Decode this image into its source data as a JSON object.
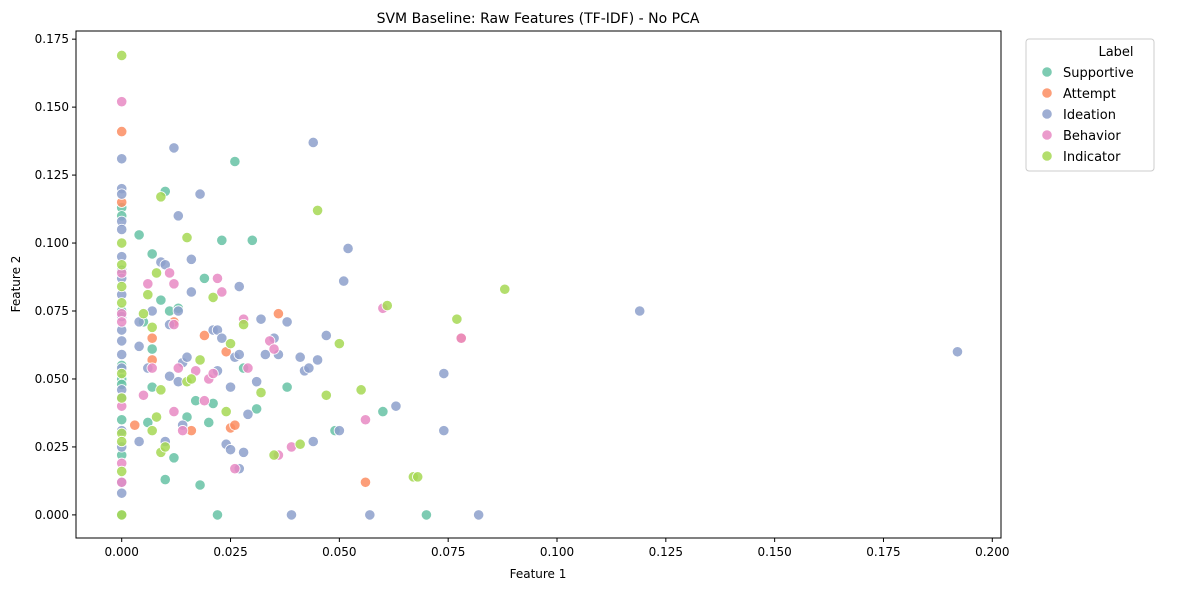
{
  "chart_data": {
    "type": "scatter",
    "title": "SVM Baseline: Raw Features (TF-IDF) - No PCA",
    "xlabel": "Feature 1",
    "ylabel": "Feature 2",
    "xlim": [
      -0.0105,
      0.202
    ],
    "ylim": [
      -0.0085,
      0.178
    ],
    "xticks": [
      0.0,
      0.025,
      0.05,
      0.075,
      0.1,
      0.125,
      0.15,
      0.175,
      0.2
    ],
    "xtick_labels": [
      "0.000",
      "0.025",
      "0.050",
      "0.075",
      "0.100",
      "0.125",
      "0.150",
      "0.175",
      "0.200"
    ],
    "yticks": [
      0.0,
      0.025,
      0.05,
      0.075,
      0.1,
      0.125,
      0.15,
      0.175
    ],
    "ytick_labels": [
      "0.000",
      "0.025",
      "0.050",
      "0.075",
      "0.100",
      "0.125",
      "0.150",
      "0.175"
    ],
    "grid": false,
    "legend": {
      "title": "Label",
      "placement": "outside-top-right"
    },
    "series": [
      {
        "name": "Supportive",
        "color": "#66c2a5",
        "points": [
          [
            0.0,
            0.113
          ],
          [
            0.0,
            0.11
          ],
          [
            0.0,
            0.09
          ],
          [
            0.0,
            0.075
          ],
          [
            0.0,
            0.055
          ],
          [
            0.0,
            0.05
          ],
          [
            0.0,
            0.048
          ],
          [
            0.0,
            0.035
          ],
          [
            0.0,
            0.022
          ],
          [
            0.0,
            0.0
          ],
          [
            0.004,
            0.103
          ],
          [
            0.005,
            0.071
          ],
          [
            0.006,
            0.034
          ],
          [
            0.007,
            0.096
          ],
          [
            0.007,
            0.061
          ],
          [
            0.007,
            0.047
          ],
          [
            0.009,
            0.079
          ],
          [
            0.01,
            0.119
          ],
          [
            0.01,
            0.013
          ],
          [
            0.011,
            0.075
          ],
          [
            0.012,
            0.021
          ],
          [
            0.013,
            0.076
          ],
          [
            0.015,
            0.036
          ],
          [
            0.017,
            0.042
          ],
          [
            0.018,
            0.011
          ],
          [
            0.019,
            0.087
          ],
          [
            0.02,
            0.034
          ],
          [
            0.021,
            0.041
          ],
          [
            0.022,
            0.0
          ],
          [
            0.023,
            0.101
          ],
          [
            0.026,
            0.13
          ],
          [
            0.028,
            0.054
          ],
          [
            0.03,
            0.101
          ],
          [
            0.031,
            0.039
          ],
          [
            0.038,
            0.047
          ],
          [
            0.049,
            0.031
          ],
          [
            0.06,
            0.038
          ],
          [
            0.07,
            0.0
          ]
        ]
      },
      {
        "name": "Attempt",
        "color": "#fc8d62",
        "points": [
          [
            0.0,
            0.141
          ],
          [
            0.0,
            0.115
          ],
          [
            0.003,
            0.033
          ],
          [
            0.007,
            0.065
          ],
          [
            0.007,
            0.057
          ],
          [
            0.012,
            0.071
          ],
          [
            0.016,
            0.031
          ],
          [
            0.019,
            0.066
          ],
          [
            0.024,
            0.06
          ],
          [
            0.025,
            0.032
          ],
          [
            0.026,
            0.033
          ],
          [
            0.036,
            0.074
          ],
          [
            0.056,
            0.012
          ],
          [
            0.078,
            0.065
          ]
        ]
      },
      {
        "name": "Ideation",
        "color": "#8da0cb",
        "points": [
          [
            0.0,
            0.131
          ],
          [
            0.0,
            0.12
          ],
          [
            0.0,
            0.118
          ],
          [
            0.0,
            0.108
          ],
          [
            0.0,
            0.105
          ],
          [
            0.0,
            0.095
          ],
          [
            0.0,
            0.087
          ],
          [
            0.0,
            0.081
          ],
          [
            0.0,
            0.073
          ],
          [
            0.0,
            0.068
          ],
          [
            0.0,
            0.064
          ],
          [
            0.0,
            0.059
          ],
          [
            0.0,
            0.054
          ],
          [
            0.0,
            0.046
          ],
          [
            0.0,
            0.043
          ],
          [
            0.0,
            0.031
          ],
          [
            0.0,
            0.025
          ],
          [
            0.0,
            0.012
          ],
          [
            0.0,
            0.008
          ],
          [
            0.004,
            0.071
          ],
          [
            0.004,
            0.062
          ],
          [
            0.004,
            0.027
          ],
          [
            0.006,
            0.054
          ],
          [
            0.007,
            0.075
          ],
          [
            0.009,
            0.093
          ],
          [
            0.01,
            0.092
          ],
          [
            0.01,
            0.027
          ],
          [
            0.011,
            0.07
          ],
          [
            0.011,
            0.051
          ],
          [
            0.012,
            0.135
          ],
          [
            0.013,
            0.049
          ],
          [
            0.013,
            0.075
          ],
          [
            0.013,
            0.11
          ],
          [
            0.014,
            0.033
          ],
          [
            0.014,
            0.056
          ],
          [
            0.015,
            0.058
          ],
          [
            0.016,
            0.094
          ],
          [
            0.016,
            0.082
          ],
          [
            0.018,
            0.118
          ],
          [
            0.021,
            0.068
          ],
          [
            0.022,
            0.053
          ],
          [
            0.022,
            0.068
          ],
          [
            0.023,
            0.065
          ],
          [
            0.024,
            0.026
          ],
          [
            0.025,
            0.047
          ],
          [
            0.025,
            0.024
          ],
          [
            0.026,
            0.058
          ],
          [
            0.027,
            0.084
          ],
          [
            0.027,
            0.059
          ],
          [
            0.027,
            0.017
          ],
          [
            0.028,
            0.023
          ],
          [
            0.029,
            0.037
          ],
          [
            0.031,
            0.049
          ],
          [
            0.032,
            0.072
          ],
          [
            0.033,
            0.059
          ],
          [
            0.035,
            0.065
          ],
          [
            0.036,
            0.059
          ],
          [
            0.038,
            0.071
          ],
          [
            0.039,
            0.0
          ],
          [
            0.041,
            0.058
          ],
          [
            0.042,
            0.053
          ],
          [
            0.043,
            0.054
          ],
          [
            0.044,
            0.137
          ],
          [
            0.044,
            0.027
          ],
          [
            0.045,
            0.057
          ],
          [
            0.047,
            0.066
          ],
          [
            0.05,
            0.031
          ],
          [
            0.051,
            0.086
          ],
          [
            0.052,
            0.098
          ],
          [
            0.057,
            0.0
          ],
          [
            0.063,
            0.04
          ],
          [
            0.074,
            0.052
          ],
          [
            0.074,
            0.031
          ],
          [
            0.082,
            0.0
          ],
          [
            0.119,
            0.075
          ],
          [
            0.192,
            0.06
          ]
        ]
      },
      {
        "name": "Behavior",
        "color": "#e78ac3",
        "points": [
          [
            0.0,
            0.152
          ],
          [
            0.0,
            0.089
          ],
          [
            0.0,
            0.074
          ],
          [
            0.0,
            0.071
          ],
          [
            0.0,
            0.04
          ],
          [
            0.0,
            0.019
          ],
          [
            0.0,
            0.012
          ],
          [
            0.005,
            0.044
          ],
          [
            0.006,
            0.085
          ],
          [
            0.007,
            0.054
          ],
          [
            0.011,
            0.089
          ],
          [
            0.012,
            0.085
          ],
          [
            0.012,
            0.07
          ],
          [
            0.012,
            0.038
          ],
          [
            0.013,
            0.054
          ],
          [
            0.014,
            0.031
          ],
          [
            0.017,
            0.053
          ],
          [
            0.019,
            0.042
          ],
          [
            0.02,
            0.05
          ],
          [
            0.021,
            0.052
          ],
          [
            0.022,
            0.087
          ],
          [
            0.023,
            0.082
          ],
          [
            0.026,
            0.017
          ],
          [
            0.028,
            0.072
          ],
          [
            0.029,
            0.054
          ],
          [
            0.034,
            0.064
          ],
          [
            0.035,
            0.061
          ],
          [
            0.036,
            0.022
          ],
          [
            0.039,
            0.025
          ],
          [
            0.056,
            0.035
          ],
          [
            0.06,
            0.076
          ],
          [
            0.078,
            0.065
          ]
        ]
      },
      {
        "name": "Indicator",
        "color": "#a6d854",
        "points": [
          [
            0.0,
            0.169
          ],
          [
            0.0,
            0.1
          ],
          [
            0.0,
            0.092
          ],
          [
            0.0,
            0.084
          ],
          [
            0.0,
            0.078
          ],
          [
            0.0,
            0.052
          ],
          [
            0.0,
            0.043
          ],
          [
            0.0,
            0.03
          ],
          [
            0.0,
            0.027
          ],
          [
            0.0,
            0.016
          ],
          [
            0.0,
            0.0
          ],
          [
            0.005,
            0.074
          ],
          [
            0.006,
            0.081
          ],
          [
            0.007,
            0.069
          ],
          [
            0.007,
            0.031
          ],
          [
            0.008,
            0.089
          ],
          [
            0.008,
            0.036
          ],
          [
            0.009,
            0.046
          ],
          [
            0.009,
            0.023
          ],
          [
            0.009,
            0.117
          ],
          [
            0.01,
            0.025
          ],
          [
            0.015,
            0.102
          ],
          [
            0.015,
            0.049
          ],
          [
            0.016,
            0.05
          ],
          [
            0.018,
            0.057
          ],
          [
            0.021,
            0.08
          ],
          [
            0.024,
            0.038
          ],
          [
            0.025,
            0.063
          ],
          [
            0.028,
            0.07
          ],
          [
            0.032,
            0.045
          ],
          [
            0.035,
            0.022
          ],
          [
            0.041,
            0.026
          ],
          [
            0.045,
            0.112
          ],
          [
            0.047,
            0.044
          ],
          [
            0.05,
            0.063
          ],
          [
            0.055,
            0.046
          ],
          [
            0.061,
            0.077
          ],
          [
            0.067,
            0.014
          ],
          [
            0.068,
            0.014
          ],
          [
            0.077,
            0.072
          ],
          [
            0.088,
            0.083
          ]
        ]
      }
    ]
  }
}
